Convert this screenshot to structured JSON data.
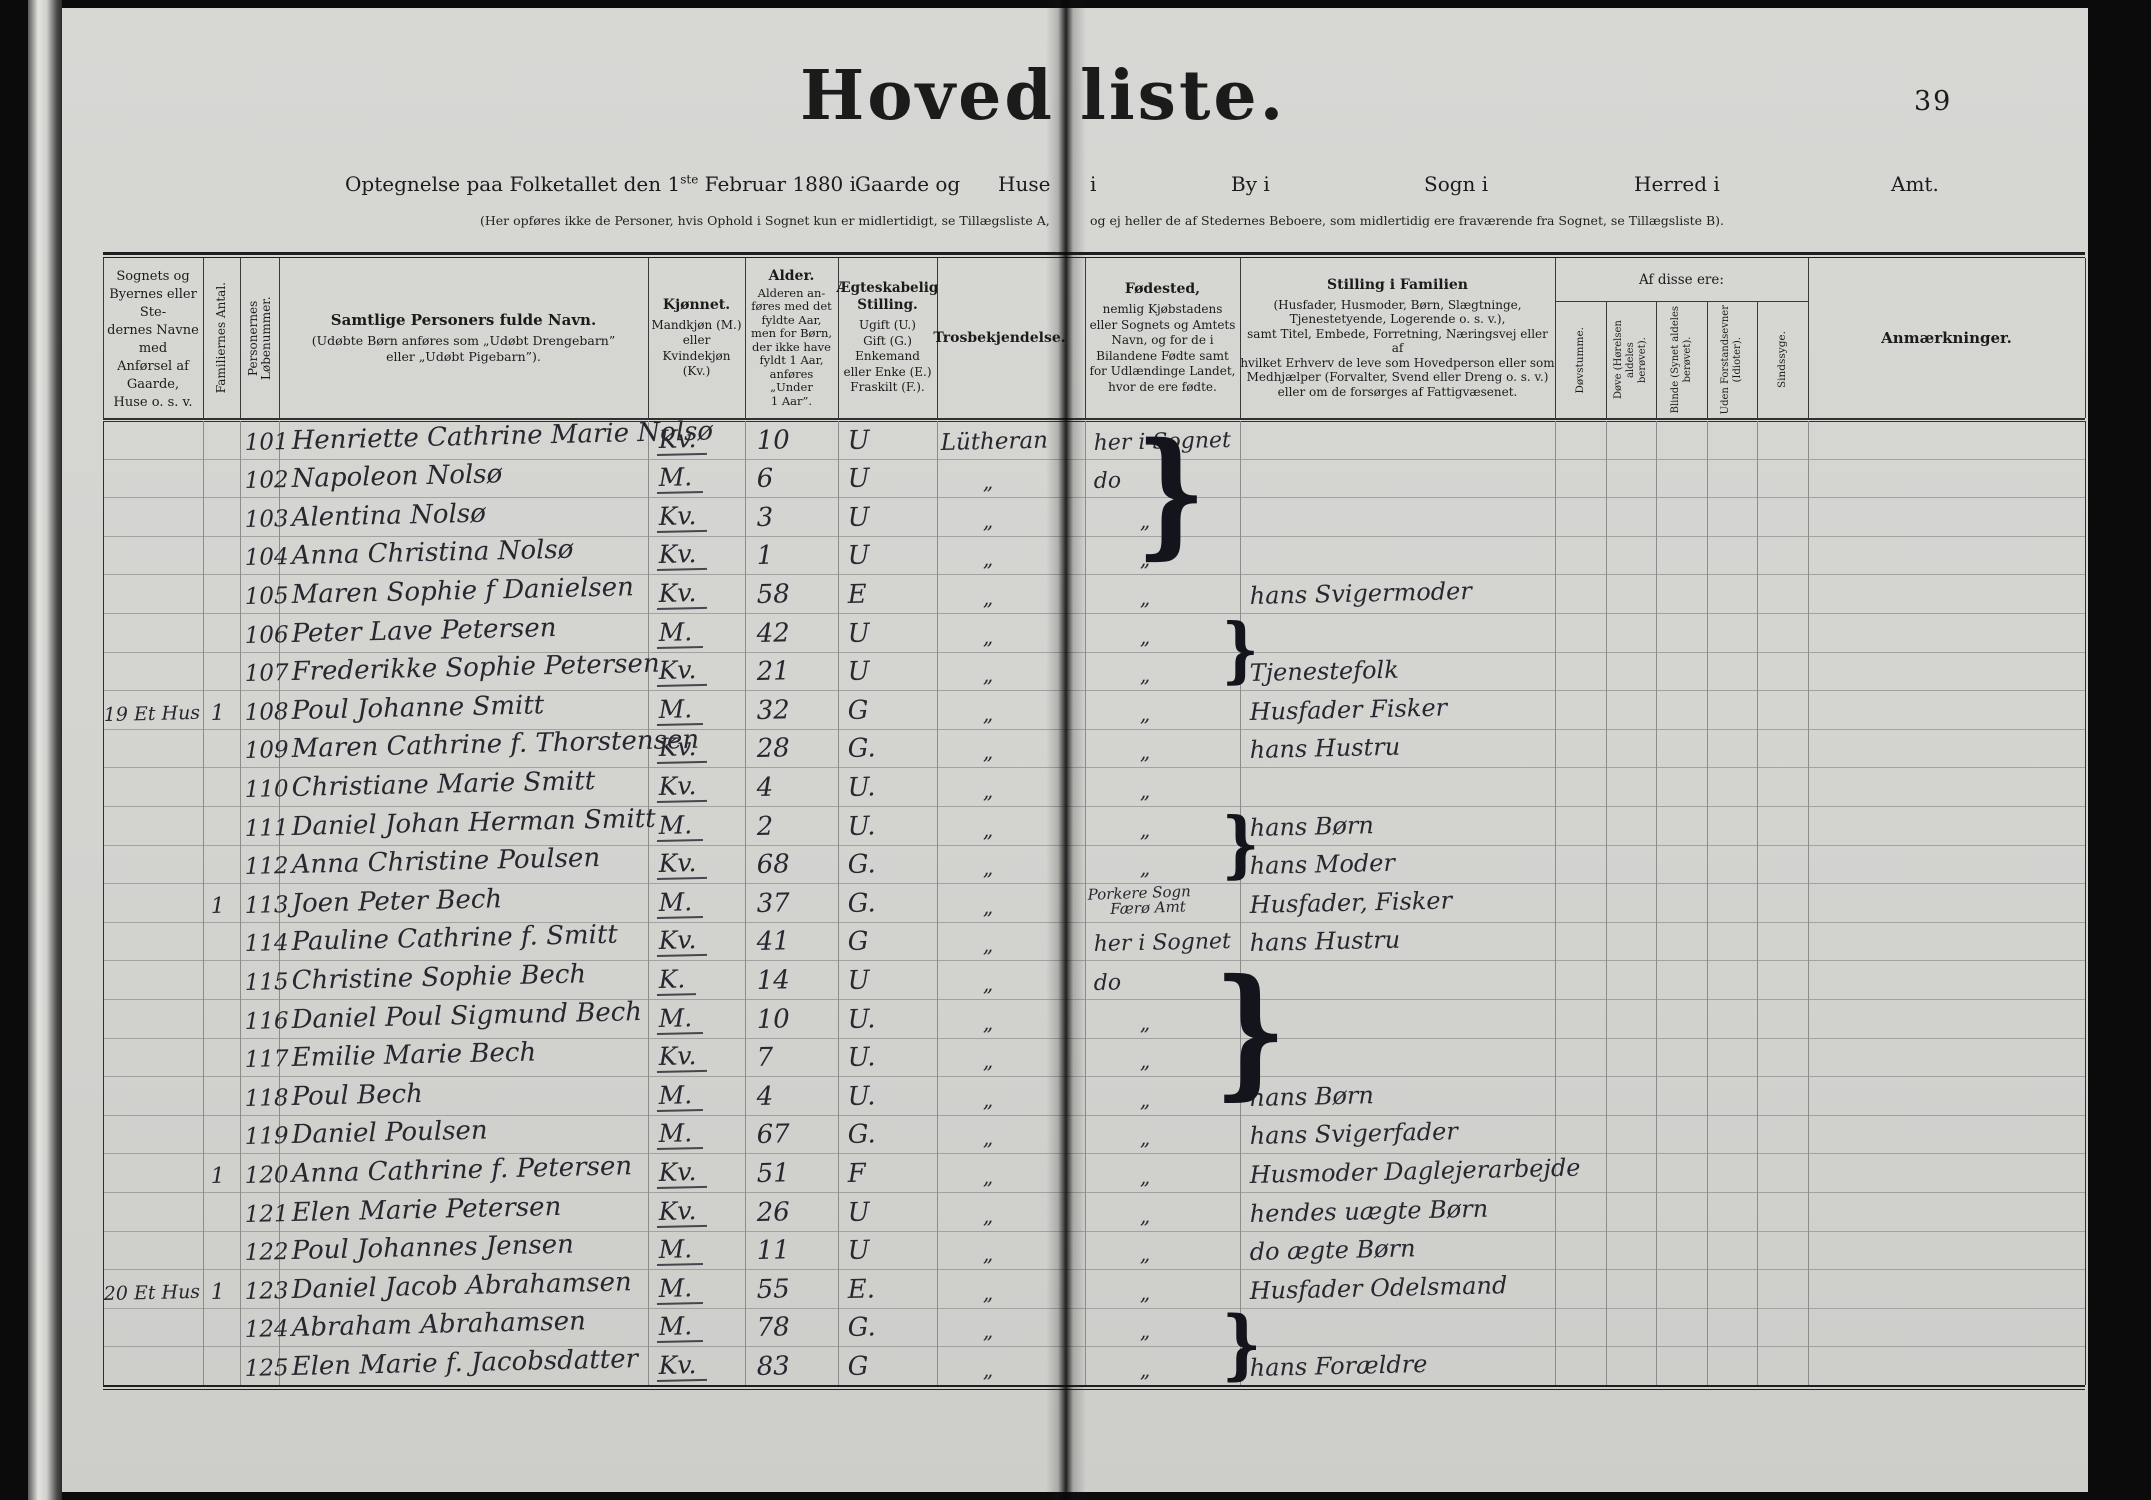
{
  "titlebar": {
    "title_left": "Hoved",
    "title_right": "liste.",
    "page_number": "39"
  },
  "intro": {
    "line1_pre": "Optegnelse paa Folketallet den 1",
    "line1_sup": "ste",
    "line1_post": " Februar 1880 i",
    "blanks": [
      "Gaarde og",
      "Huse",
      "i",
      "By i",
      "Sogn i",
      "Herred i",
      "Amt."
    ],
    "note_left": "(Her opføres ikke de Personer, hvis Ophold i Sognet kun er midlertidigt, se Tillægsliste A,",
    "note_right": "og ej heller de af Stedernes Beboere, som midlertidig ere fraværende fra Sognet, se Tillægsliste B)."
  },
  "header": {
    "col_place": "Sognets og\nByernes eller Ste-\ndernes Navne med\nAnførsel af Gaarde,\nHuse o. s. v.",
    "col_family_count": "Familiernes Antal.",
    "col_person_number": "Personernes Løbenummer.",
    "col_name_title": "Samtlige Personers fulde Navn.",
    "col_name_sub": "(Udøbte Børn anføres som „Udøbt Drengebarn”\neller „Udøbt Pigebarn”).",
    "col_sex_title": "Kjønnet.",
    "col_sex_sub": "Mandkjøn (M.)\neller\nKvindekjøn (Kv.)",
    "col_age_title": "Alder.",
    "col_age_sub": "Alderen an-\nføres med det\nfyldte Aar,\nmen for Børn,\nder ikke have\nfyldt 1 Aar,\nanføres\n„Under\n1 Aar”.",
    "col_marital_title": "Ægteskabelig\nStilling.",
    "col_marital_sub": "Ugift (U.)\nGift (G.)\nEnkemand\neller Enke (E.)\nFraskilt (F.).",
    "col_faith_title": "Trosbekjendelse.",
    "col_birth_title": "Fødested,",
    "col_birth_sub": "nemlig Kjøbstadens\neller Sognets og Amtets\nNavn, og for de i\nBilandene Fødte samt\nfor Udlændinge Landet,\nhvor de ere fødte.",
    "col_position_title": "Stilling i Familien",
    "col_position_sub": "(Husfader, Husmoder, Børn, Slægtninge,\nTjenestetyende, Logerende o. s. v.),\nsamt Titel, Embede, Forretning, Næringsvej eller af\nhvilket Erhverv de leve som Hovedperson eller som\nMedhjælper (Forvalter, Svend eller Dreng o. s. v.)\neller om de forsørges af Fattigvæsenet.",
    "group_disabilities": "Af disse ere:",
    "col_deaf_mute": "Døvstumme.",
    "col_deaf": "Døve (Hørelsen aldeles\nberøvet).",
    "col_blind": "Blinde (Synet aldeles\nberøvet).",
    "col_no_reason": "Uden Forstandsevner\n(Idioter).",
    "col_insane": "Sindssyge.",
    "col_remarks": "Anmærkninger."
  },
  "rows": [
    {
      "nr": "101",
      "name": "Henriette Cathrine Marie Nolsø",
      "sex": "Kv.",
      "age": "10",
      "status": "U",
      "faith": "Lütheran",
      "birth": "her i Sognet",
      "pos": ""
    },
    {
      "nr": "102",
      "name": "Napoleon Nolsø",
      "sex": "M.",
      "age": "6",
      "status": "U",
      "faith": "„",
      "birth": "do",
      "pos": ""
    },
    {
      "nr": "103",
      "name": "Alentina Nolsø",
      "sex": "Kv.",
      "age": "3",
      "status": "U",
      "faith": "„",
      "birth": "„",
      "pos": ""
    },
    {
      "nr": "104",
      "name": "Anna Christina Nolsø",
      "sex": "Kv.",
      "age": "1",
      "status": "U",
      "faith": "„",
      "birth": "„",
      "pos": ""
    },
    {
      "nr": "105",
      "name": "Maren Sophie f Danielsen",
      "sex": "Kv.",
      "age": "58",
      "status": "E",
      "faith": "„",
      "birth": "„",
      "pos": "hans Svigermoder"
    },
    {
      "nr": "106",
      "name": "Peter Lave Petersen",
      "sex": "M.",
      "age": "42",
      "status": "U",
      "faith": "„",
      "birth": "„",
      "pos": ""
    },
    {
      "nr": "107",
      "name": "Frederikke Sophie Petersen",
      "sex": "Kv.",
      "age": "21",
      "status": "U",
      "faith": "„",
      "birth": "„",
      "pos": "Tjenestefolk"
    },
    {
      "place": "19 Et Hus",
      "fam": "1",
      "nr": "108",
      "name": "Poul Johanne Smitt",
      "sex": "M.",
      "age": "32",
      "status": "G",
      "faith": "„",
      "birth": "„",
      "pos": "Husfader Fisker"
    },
    {
      "nr": "109",
      "name": "Maren Cathrine f. Thorstensen",
      "sex": "Kv.",
      "age": "28",
      "status": "G.",
      "faith": "„",
      "birth": "„",
      "pos": "hans Hustru"
    },
    {
      "nr": "110",
      "name": "Christiane Marie Smitt",
      "sex": "Kv.",
      "age": "4",
      "status": "U.",
      "faith": "„",
      "birth": "„",
      "pos": ""
    },
    {
      "nr": "111",
      "name": "Daniel Johan Herman Smitt",
      "sex": "M.",
      "age": "2",
      "status": "U.",
      "faith": "„",
      "birth": "„",
      "pos": "hans Børn"
    },
    {
      "nr": "112",
      "name": "Anna Christine Poulsen",
      "sex": "Kv.",
      "age": "68",
      "status": "G.",
      "faith": "„",
      "birth": "„",
      "pos": "hans Moder"
    },
    {
      "fam": "1",
      "nr": "113",
      "name": "Joen Peter Bech",
      "sex": "M.",
      "age": "37",
      "status": "G.",
      "faith": "„",
      "birth": "Porkere Sogn",
      "birth2": "Færø Amt",
      "pos": "Husfader, Fisker"
    },
    {
      "nr": "114",
      "name": "Pauline Cathrine f. Smitt",
      "sex": "Kv.",
      "age": "41",
      "status": "G",
      "faith": "„",
      "birth": "her i Sognet",
      "pos": "hans Hustru"
    },
    {
      "nr": "115",
      "name": "Christine Sophie Bech",
      "sex": "K.",
      "age": "14",
      "status": "U",
      "faith": "„",
      "birth": "do",
      "pos": ""
    },
    {
      "nr": "116",
      "name": "Daniel Poul Sigmund Bech",
      "sex": "M.",
      "age": "10",
      "status": "U.",
      "faith": "„",
      "birth": "„",
      "pos": ""
    },
    {
      "nr": "117",
      "name": "Emilie Marie Bech",
      "sex": "Kv.",
      "age": "7",
      "status": "U.",
      "faith": "„",
      "birth": "„",
      "pos": ""
    },
    {
      "nr": "118",
      "name": "Poul Bech",
      "sex": "M.",
      "age": "4",
      "status": "U.",
      "faith": "„",
      "birth": "„",
      "pos": "hans Børn"
    },
    {
      "nr": "119",
      "name": "Daniel Poulsen",
      "sex": "M.",
      "age": "67",
      "status": "G.",
      "faith": "„",
      "birth": "„",
      "pos": "hans Svigerfader"
    },
    {
      "fam": "1",
      "nr": "120",
      "name": "Anna Cathrine f. Petersen",
      "sex": "Kv.",
      "age": "51",
      "status": "F",
      "faith": "„",
      "birth": "„",
      "pos": "Husmoder Daglejerarbejde"
    },
    {
      "nr": "121",
      "name": "Elen Marie Petersen",
      "sex": "Kv.",
      "age": "26",
      "status": "U",
      "faith": "„",
      "birth": "„",
      "pos": "hendes uægte Børn"
    },
    {
      "nr": "122",
      "name": "Poul Johannes Jensen",
      "sex": "M.",
      "age": "11",
      "status": "U",
      "faith": "„",
      "birth": "„",
      "pos": "do ægte Børn"
    },
    {
      "place": "20 Et Hus",
      "fam": "1",
      "nr": "123",
      "name": "Daniel Jacob Abrahamsen",
      "sex": "M.",
      "age": "55",
      "status": "E.",
      "faith": "„",
      "birth": "„",
      "pos": "Husfader Odelsmand"
    },
    {
      "nr": "124",
      "name": "Abraham Abrahamsen",
      "sex": "M.",
      "age": "78",
      "status": "G.",
      "faith": "„",
      "birth": "„",
      "pos": ""
    },
    {
      "nr": "125",
      "name": "Elen Marie f. Jacobsdatter",
      "sex": "Kv.",
      "age": "83",
      "status": "G",
      "faith": "„",
      "birth": "„",
      "pos": "hans Forældre"
    }
  ],
  "brace_glyph": "}"
}
